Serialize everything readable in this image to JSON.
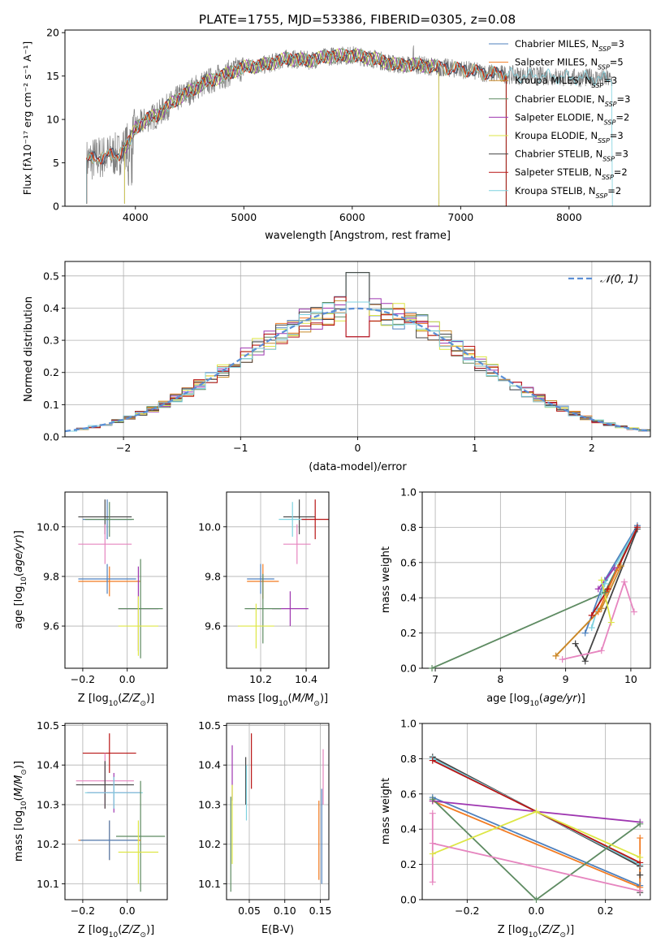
{
  "title": "PLATE=1755, MJD=53386, FIBERID=0305, z=0.08",
  "chart_data": [
    {
      "id": "spectrum",
      "type": "line",
      "xlabel": "wavelength [Angstrom, rest frame]",
      "ylabel": "Flux [fλ10⁻¹⁷ erg cm⁻² s⁻¹ A⁻¹]",
      "xlim": [
        3350,
        8750
      ],
      "ylim": [
        0,
        20.3
      ],
      "xticks": [
        "4000",
        "5000",
        "6000",
        "7000",
        "8000"
      ],
      "yticks": [
        "0",
        "5",
        "10",
        "15",
        "20"
      ],
      "grid": false,
      "legend_position": "top-right",
      "observed_color": "#7f7f7f",
      "continuum": {
        "x": [
          3550,
          3650,
          3750,
          3850,
          3950,
          4000,
          4100,
          4200,
          4300,
          4400,
          4500,
          4600,
          4800,
          5000,
          5200,
          5400,
          5600,
          5800,
          6000,
          6200,
          6400,
          6600,
          6800,
          7000,
          7200,
          7400,
          7600,
          7800,
          8000,
          8200,
          8400
        ],
        "y": [
          5.2,
          5.6,
          5.8,
          6.0,
          7.5,
          9.0,
          10.0,
          10.5,
          11.5,
          12.5,
          13.2,
          14.0,
          15.0,
          16.0,
          16.3,
          17.0,
          16.8,
          17.3,
          17.4,
          17.0,
          16.3,
          16.3,
          16.0,
          15.8,
          15.4,
          15.2,
          15.0,
          15.0,
          14.8,
          14.8,
          14.6
        ]
      },
      "series": [
        {
          "name": "Chabrier MILES, N",
          "sub": "SSP",
          "suffix": "=3",
          "color": "#4f81bd",
          "xrange": [
            3550,
            7420
          ]
        },
        {
          "name": "Salpeter MILES, N",
          "sub": "SSP",
          "suffix": "=5",
          "color": "#f27b22",
          "xrange": [
            3550,
            7420
          ]
        },
        {
          "name": "Kroupa MILES, N",
          "sub": "SSP",
          "suffix": "=3",
          "color": "#c88a2a",
          "xrange": [
            3550,
            7420
          ]
        },
        {
          "name": "Chabrier ELODIE, N",
          "sub": "SSP",
          "suffix": "=3",
          "color": "#5e8b62",
          "xrange": [
            3900,
            6800
          ]
        },
        {
          "name": "Salpeter ELODIE, N",
          "sub": "SSP",
          "suffix": "=2",
          "color": "#9e36b0",
          "xrange": [
            3900,
            6800
          ]
        },
        {
          "name": "Kroupa ELODIE, N",
          "sub": "SSP",
          "suffix": "=3",
          "color": "#dde645",
          "xrange": [
            3900,
            6800
          ]
        },
        {
          "name": "Chabrier STELIB, N",
          "sub": "SSP",
          "suffix": "=3",
          "color": "#444444",
          "xrange": [
            3550,
            7420
          ]
        },
        {
          "name": "Salpeter STELIB, N",
          "sub": "SSP",
          "suffix": "=2",
          "color": "#b81414",
          "xrange": [
            3550,
            7420
          ]
        },
        {
          "name": "Kroupa STELIB, N",
          "sub": "SSP",
          "suffix": "=2",
          "color": "#7dd2df",
          "xrange": [
            3550,
            8400
          ]
        }
      ]
    },
    {
      "id": "residual-histogram",
      "type": "line",
      "xlabel": "(data-model)/error",
      "ylabel": "Normed distribution",
      "xlim": [
        -2.5,
        2.5
      ],
      "ylim": [
        0,
        0.545
      ],
      "xticks": [
        "−2",
        "−1",
        "0",
        "1",
        "2"
      ],
      "xtick_values": [
        -2,
        -1,
        0,
        1,
        2
      ],
      "yticks": [
        "0.0",
        "0.1",
        "0.2",
        "0.3",
        "0.4",
        "0.5"
      ],
      "ytick_values": [
        0,
        0.1,
        0.2,
        0.3,
        0.4,
        0.5
      ],
      "grid": true,
      "legend_position": "top-right",
      "reference_curve": {
        "label": "𝒩(0, 1)",
        "color": "#5b8fd6",
        "mean": 0,
        "sigma": 1
      },
      "bin_width": 0.1,
      "bin_start": -2.5,
      "colors": [
        "#4f81bd",
        "#f27b22",
        "#c88a2a",
        "#5e8b62",
        "#9e36b0",
        "#dde645",
        "#444444",
        "#b81414",
        "#7dd2df"
      ]
    },
    {
      "id": "age-vs-Z",
      "type": "scatter",
      "xlabel": "Z [log10(Z/Z⊙)]",
      "ylabel": "age [log10(age/yr)]",
      "xlim": [
        -0.28,
        0.18
      ],
      "ylim": [
        9.43,
        10.14
      ],
      "xticks": [
        "−0.2",
        "0.0"
      ],
      "xtick_values": [
        -0.2,
        0.0
      ],
      "yticks": [
        "9.6",
        "9.8",
        "10.0"
      ],
      "ytick_values": [
        9.6,
        9.8,
        10.0
      ],
      "grid": true,
      "points": [
        {
          "x": -0.09,
          "y": 10.03,
          "xerr": 0.11,
          "yerr": 0.08,
          "color": "#4f81bd"
        },
        {
          "x": -0.1,
          "y": 10.04,
          "xerr": 0.12,
          "yerr": 0.07,
          "color": "#444444"
        },
        {
          "x": -0.08,
          "y": 10.03,
          "xerr": 0.11,
          "yerr": 0.07,
          "color": "#5e8b62"
        },
        {
          "x": -0.1,
          "y": 9.93,
          "xerr": 0.12,
          "yerr": 0.08,
          "color": "#e685bf"
        },
        {
          "x": -0.08,
          "y": 9.78,
          "xerr": 0.14,
          "yerr": 0.06,
          "color": "#f27b22"
        },
        {
          "x": -0.09,
          "y": 9.79,
          "xerr": 0.13,
          "yerr": 0.06,
          "color": "#4f81bd"
        },
        {
          "x": 0.05,
          "y": 9.67,
          "xerr": 0.09,
          "yerr": 0.17,
          "color": "#9e36b0"
        },
        {
          "x": 0.06,
          "y": 9.67,
          "xerr": 0.1,
          "yerr": 0.2,
          "color": "#5e8b62"
        },
        {
          "x": 0.05,
          "y": 9.6,
          "xerr": 0.09,
          "yerr": 0.12,
          "color": "#dde645"
        }
      ]
    },
    {
      "id": "age-vs-mass",
      "type": "scatter",
      "xlabel": "mass [log10(M/M⊙)]",
      "ylabel": "",
      "xlim": [
        10.05,
        10.5
      ],
      "ylim": [
        9.43,
        10.14
      ],
      "xticks": [
        "10.2",
        "10.4"
      ],
      "xtick_values": [
        10.2,
        10.4
      ],
      "yticks": [
        "9.6",
        "9.8",
        "10.0"
      ],
      "ytick_values": [
        9.6,
        9.8,
        10.0
      ],
      "grid": true,
      "points": [
        {
          "x": 10.37,
          "y": 10.04,
          "xerr": 0.07,
          "yerr": 0.07,
          "color": "#444444"
        },
        {
          "x": 10.34,
          "y": 10.03,
          "xerr": 0.06,
          "yerr": 0.07,
          "color": "#7dd2df"
        },
        {
          "x": 10.44,
          "y": 10.03,
          "xerr": 0.06,
          "yerr": 0.08,
          "color": "#b81414"
        },
        {
          "x": 10.36,
          "y": 9.93,
          "xerr": 0.06,
          "yerr": 0.08,
          "color": "#e685bf"
        },
        {
          "x": 10.21,
          "y": 9.78,
          "xerr": 0.07,
          "yerr": 0.07,
          "color": "#f27b22"
        },
        {
          "x": 10.2,
          "y": 9.79,
          "xerr": 0.06,
          "yerr": 0.06,
          "color": "#4f81bd"
        },
        {
          "x": 10.33,
          "y": 9.67,
          "xerr": 0.08,
          "yerr": 0.07,
          "color": "#9e36b0"
        },
        {
          "x": 10.21,
          "y": 9.67,
          "xerr": 0.08,
          "yerr": 0.14,
          "color": "#5e8b62"
        },
        {
          "x": 10.18,
          "y": 9.6,
          "xerr": 0.08,
          "yerr": 0.09,
          "color": "#dde645"
        }
      ]
    },
    {
      "id": "mass-weight-vs-age",
      "type": "line",
      "xlabel": "age [log10(age/yr)]",
      "ylabel": "mass weight",
      "xlim": [
        6.8,
        10.3
      ],
      "ylim": [
        0,
        1
      ],
      "xticks": [
        "7",
        "8",
        "9",
        "10"
      ],
      "xtick_values": [
        7,
        8,
        9,
        10
      ],
      "yticks": [
        "0.0",
        "0.2",
        "0.4",
        "0.6",
        "0.8",
        "1.0"
      ],
      "ytick_values": [
        0,
        0.2,
        0.4,
        0.6,
        0.8,
        1.0
      ],
      "grid": true,
      "series": [
        {
          "color": "#5e8b62",
          "x": [
            6.95,
            9.6,
            10.1
          ],
          "y": [
            0.0,
            0.43,
            0.8
          ]
        },
        {
          "color": "#4f81bd",
          "x": [
            9.3,
            9.6,
            10.1
          ],
          "y": [
            0.2,
            0.5,
            0.81
          ]
        },
        {
          "color": "#7dd2df",
          "x": [
            9.4,
            9.6,
            10.1
          ],
          "y": [
            0.23,
            0.48,
            0.8
          ]
        },
        {
          "color": "#444444",
          "x": [
            9.15,
            9.3,
            10.1
          ],
          "y": [
            0.14,
            0.04,
            0.79
          ]
        },
        {
          "color": "#b81414",
          "x": [
            9.4,
            9.65,
            10.1
          ],
          "y": [
            0.3,
            0.45,
            0.8
          ]
        },
        {
          "color": "#f27b22",
          "x": [
            8.85,
            9.5,
            9.8
          ],
          "y": [
            0.07,
            0.32,
            0.57
          ]
        },
        {
          "color": "#c88a2a",
          "x": [
            8.85,
            9.55,
            9.85
          ],
          "y": [
            0.07,
            0.34,
            0.58
          ]
        },
        {
          "color": "#9e36b0",
          "x": [
            9.5,
            9.75
          ],
          "y": [
            0.45,
            0.57
          ]
        },
        {
          "color": "#dde645",
          "x": [
            9.55,
            9.7
          ],
          "y": [
            0.5,
            0.26
          ]
        },
        {
          "color": "#e685bf",
          "x": [
            8.95,
            9.55,
            9.9,
            10.05
          ],
          "y": [
            0.05,
            0.1,
            0.49,
            0.32
          ]
        }
      ]
    },
    {
      "id": "mass-vs-Z",
      "type": "scatter",
      "xlabel": "Z [log10(Z/Z⊙)]",
      "ylabel": "mass [log10(M/M⊙)]",
      "xlim": [
        -0.28,
        0.18
      ],
      "ylim": [
        10.06,
        10.505
      ],
      "xticks": [
        "−0.2",
        "0.0"
      ],
      "xtick_values": [
        -0.2,
        0.0
      ],
      "yticks": [
        "10.1",
        "10.2",
        "10.3",
        "10.4",
        "10.5"
      ],
      "ytick_values": [
        10.1,
        10.2,
        10.3,
        10.4,
        10.5
      ],
      "grid": true,
      "points": [
        {
          "x": -0.08,
          "y": 10.43,
          "xerr": 0.12,
          "yerr": 0.05,
          "color": "#b81414"
        },
        {
          "x": -0.1,
          "y": 10.36,
          "xerr": 0.13,
          "yerr": 0.07,
          "color": "#e685bf"
        },
        {
          "x": -0.1,
          "y": 10.35,
          "xerr": 0.13,
          "yerr": 0.06,
          "color": "#444444"
        },
        {
          "x": -0.06,
          "y": 10.33,
          "xerr": 0.12,
          "yerr": 0.05,
          "color": "#9e36b0"
        },
        {
          "x": -0.06,
          "y": 10.33,
          "xerr": 0.13,
          "yerr": 0.04,
          "color": "#7dd2df"
        },
        {
          "x": 0.06,
          "y": 10.22,
          "xerr": 0.11,
          "yerr": 0.14,
          "color": "#5e8b62"
        },
        {
          "x": -0.08,
          "y": 10.21,
          "xerr": 0.14,
          "yerr": 0.05,
          "color": "#f27b22"
        },
        {
          "x": -0.08,
          "y": 10.21,
          "xerr": 0.13,
          "yerr": 0.05,
          "color": "#4f81bd"
        },
        {
          "x": 0.05,
          "y": 10.18,
          "xerr": 0.09,
          "yerr": 0.08,
          "color": "#dde645"
        }
      ]
    },
    {
      "id": "mass-vs-ebv",
      "type": "scatter",
      "xlabel": "E(B-V)",
      "ylabel": "",
      "xlim": [
        0.018,
        0.162
      ],
      "ylim": [
        10.06,
        10.505
      ],
      "xticks": [
        "0.05",
        "0.10",
        "0.15"
      ],
      "xtick_values": [
        0.05,
        0.1,
        0.15
      ],
      "yticks": [
        "10.1",
        "10.2",
        "10.3",
        "10.4",
        "10.5"
      ],
      "ytick_values": [
        10.1,
        10.2,
        10.3,
        10.4,
        10.5
      ],
      "grid": true,
      "points": [
        {
          "x": 0.053,
          "y": 10.41,
          "xerr": 0,
          "yerr": 0.07,
          "color": "#b81414"
        },
        {
          "x": 0.045,
          "y": 10.36,
          "xerr": 0,
          "yerr": 0.06,
          "color": "#444444"
        },
        {
          "x": 0.046,
          "y": 10.33,
          "xerr": 0,
          "yerr": 0.07,
          "color": "#7dd2df"
        },
        {
          "x": 0.026,
          "y": 10.38,
          "xerr": 0,
          "yerr": 0.07,
          "color": "#9e36b0"
        },
        {
          "x": 0.024,
          "y": 10.2,
          "xerr": 0,
          "yerr": 0.12,
          "color": "#5e8b62"
        },
        {
          "x": 0.026,
          "y": 10.25,
          "xerr": 0,
          "yerr": 0.1,
          "color": "#dde645"
        },
        {
          "x": 0.148,
          "y": 10.21,
          "xerr": 0,
          "yerr": 0.1,
          "color": "#f27b22"
        },
        {
          "x": 0.152,
          "y": 10.22,
          "xerr": 0,
          "yerr": 0.12,
          "color": "#4f81bd"
        },
        {
          "x": 0.154,
          "y": 10.37,
          "xerr": 0,
          "yerr": 0.07,
          "color": "#e685bf"
        }
      ]
    },
    {
      "id": "mass-weight-vs-Z",
      "type": "line",
      "xlabel": "Z [log10(Z/Z⊙)]",
      "ylabel": "mass weight",
      "xlim": [
        -0.33,
        0.33
      ],
      "ylim": [
        0,
        1
      ],
      "xticks": [
        "−0.2",
        "0.0",
        "0.2"
      ],
      "xtick_values": [
        -0.2,
        0.0,
        0.2
      ],
      "yticks": [
        "0.0",
        "0.2",
        "0.4",
        "0.6",
        "0.8",
        "1.0"
      ],
      "ytick_values": [
        0,
        0.2,
        0.4,
        0.6,
        0.8,
        1.0
      ],
      "grid": true,
      "series": [
        {
          "color": "#444444",
          "x": [
            -0.3,
            0.3,
            0.3,
            0.3
          ],
          "y": [
            0.81,
            0.19,
            0.14,
            0.04
          ]
        },
        {
          "color": "#7dd2df",
          "x": [
            -0.3,
            0.3
          ],
          "y": [
            0.8,
            0.2
          ]
        },
        {
          "color": "#b81414",
          "x": [
            -0.3,
            0.3
          ],
          "y": [
            0.79,
            0.21
          ]
        },
        {
          "color": "#4f81bd",
          "x": [
            -0.3,
            0.3
          ],
          "y": [
            0.58,
            0.08
          ]
        },
        {
          "color": "#f27b22",
          "x": [
            -0.3,
            0.3,
            0.3
          ],
          "y": [
            0.56,
            0.07,
            0.35
          ]
        },
        {
          "color": "#9e36b0",
          "x": [
            -0.3,
            0.3
          ],
          "y": [
            0.56,
            0.44
          ]
        },
        {
          "color": "#5e8b62",
          "x": [
            -0.3,
            0.0,
            0.3
          ],
          "y": [
            0.57,
            0.0,
            0.43
          ]
        },
        {
          "color": "#dde645",
          "x": [
            -0.3,
            0.0,
            0.3
          ],
          "y": [
            0.26,
            0.5,
            0.24
          ]
        },
        {
          "color": "#e685bf",
          "x": [
            -0.3,
            -0.3,
            -0.3,
            0.3
          ],
          "y": [
            0.1,
            0.49,
            0.32,
            0.05
          ]
        }
      ]
    }
  ]
}
